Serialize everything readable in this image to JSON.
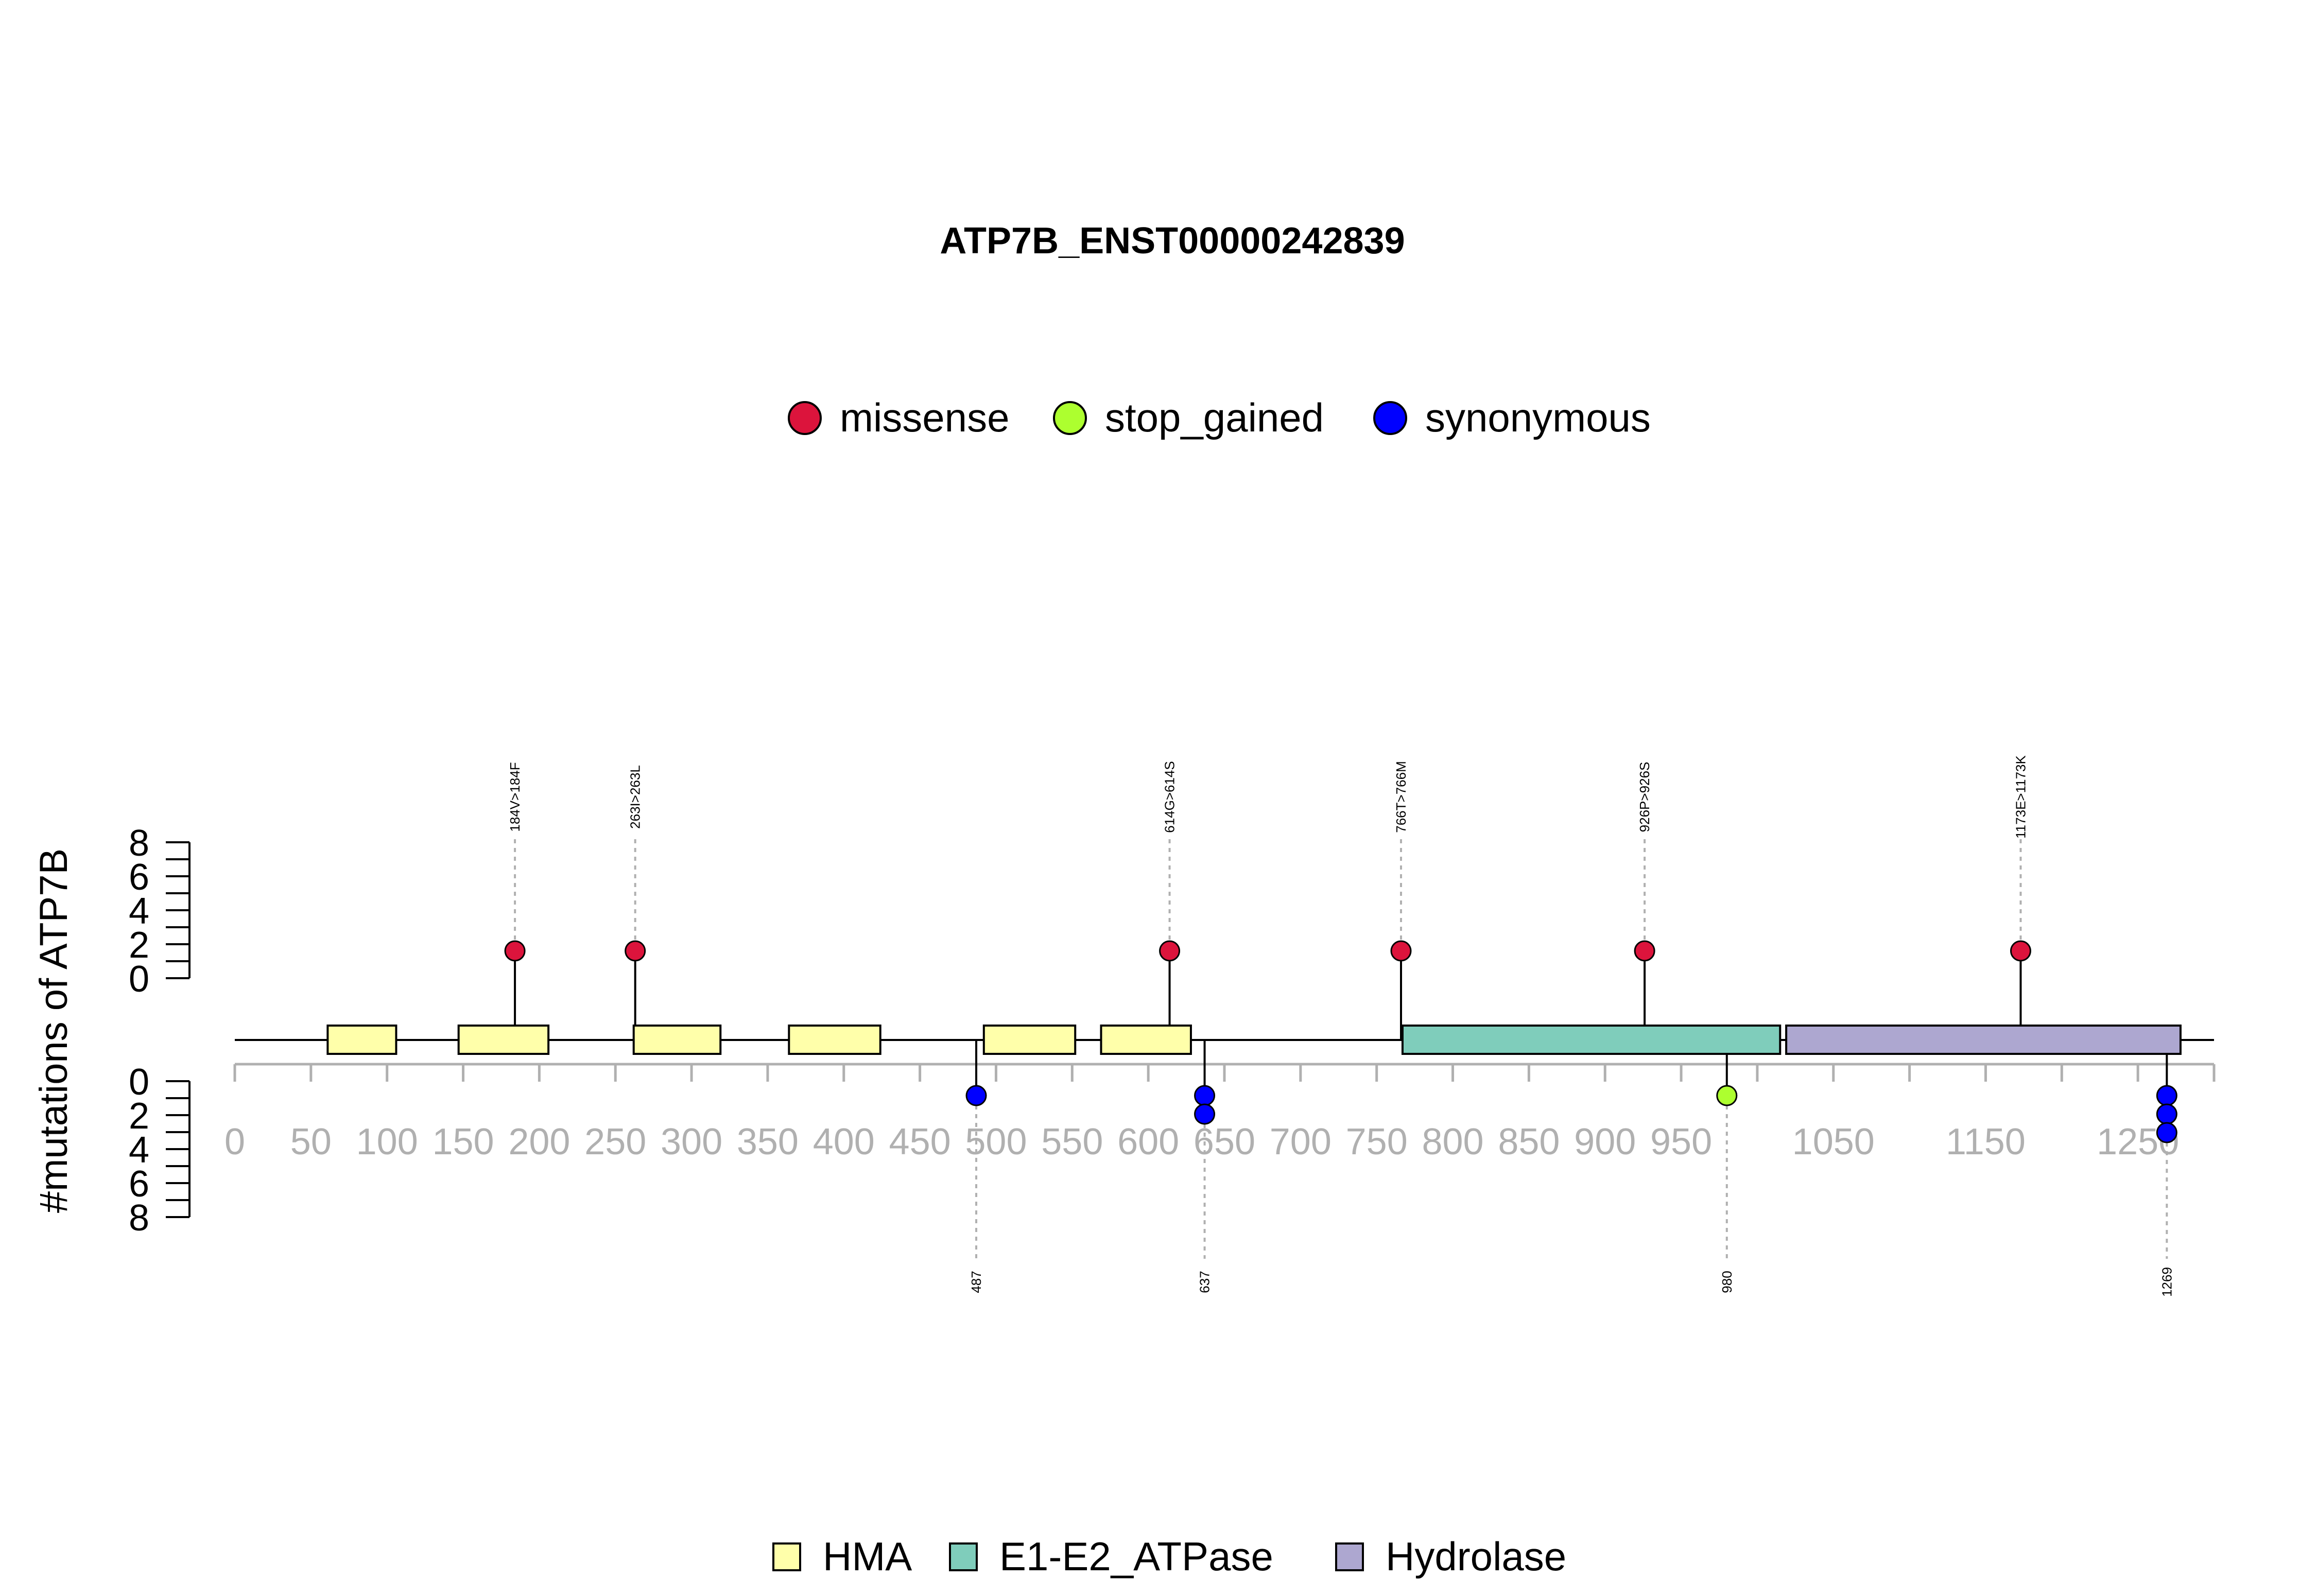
{
  "chart_data": {
    "type": "lollipop",
    "title": "ATP7B_ENST00000242839",
    "ylabel": "#mutations of ATP7B",
    "xlim": [
      0,
      1300
    ],
    "x_ticks": [
      0,
      50,
      100,
      150,
      200,
      250,
      300,
      350,
      400,
      450,
      500,
      550,
      600,
      650,
      700,
      750,
      800,
      850,
      900,
      950,
      1050,
      1150,
      1250
    ],
    "y_ticks": [
      0,
      2,
      4,
      6,
      8
    ],
    "mutation_types": [
      {
        "name": "missense",
        "color": "#DC143C"
      },
      {
        "name": "stop_gained",
        "color": "#ADFF2F"
      },
      {
        "name": "synonymous",
        "color": "#0000FF"
      }
    ],
    "domain_types": [
      {
        "name": "HMA",
        "color": "#FFFFAA"
      },
      {
        "name": "E1-E2_ATPase",
        "color": "#7FCDBB"
      },
      {
        "name": "Hydrolase",
        "color": "#ADA7D0"
      }
    ],
    "domains": [
      {
        "type": "HMA",
        "start": 61,
        "end": 106
      },
      {
        "type": "HMA",
        "start": 147,
        "end": 206
      },
      {
        "type": "HMA",
        "start": 262,
        "end": 319
      },
      {
        "type": "HMA",
        "start": 364,
        "end": 424
      },
      {
        "type": "HMA",
        "start": 492,
        "end": 552
      },
      {
        "type": "HMA",
        "start": 569,
        "end": 628
      },
      {
        "type": "E1-E2_ATPase",
        "start": 767,
        "end": 1015
      },
      {
        "type": "Hydrolase",
        "start": 1019,
        "end": 1278
      }
    ],
    "mutations_above": [
      {
        "position": 184,
        "count": 1,
        "type": "missense",
        "label": "184V>184F"
      },
      {
        "position": 263,
        "count": 1,
        "type": "missense",
        "label": "263I>263L"
      },
      {
        "position": 614,
        "count": 1,
        "type": "missense",
        "label": "614G>614S"
      },
      {
        "position": 766,
        "count": 1,
        "type": "missense",
        "label": "766T>766M"
      },
      {
        "position": 926,
        "count": 1,
        "type": "missense",
        "label": "926P>926S"
      },
      {
        "position": 1173,
        "count": 1,
        "type": "missense",
        "label": "1173E>1173K"
      }
    ],
    "mutations_below": [
      {
        "position": 487,
        "count": 1,
        "type": "synonymous",
        "label": "487"
      },
      {
        "position": 637,
        "count": 2,
        "type": "synonymous",
        "label": "637"
      },
      {
        "position": 980,
        "count": 1,
        "type": "stop_gained",
        "label": "980"
      },
      {
        "position": 1269,
        "count": 3,
        "type": "synonymous",
        "label": "1269"
      }
    ]
  }
}
